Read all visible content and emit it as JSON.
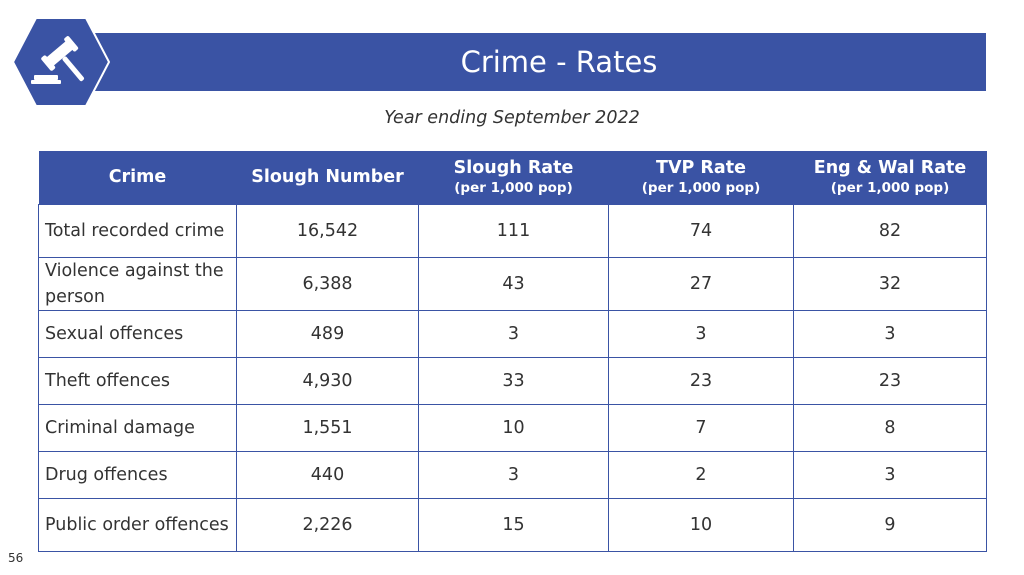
{
  "slide": {
    "title": "Crime - Rates",
    "subtitle": "Year ending September 2022",
    "page_number": "56",
    "icon": "gavel-icon",
    "accent_color": "#3a53a4"
  },
  "table": {
    "headers": [
      {
        "label": "Crime",
        "sub": ""
      },
      {
        "label": "Slough Number",
        "sub": ""
      },
      {
        "label": "Slough Rate",
        "sub": "(per 1,000 pop)"
      },
      {
        "label": "TVP Rate",
        "sub": "(per 1,000 pop)"
      },
      {
        "label": "Eng & Wal Rate",
        "sub": "(per 1,000 pop)"
      }
    ],
    "rows": [
      {
        "crime": "Total recorded crime",
        "slough_number": "16,542",
        "slough_rate": "111",
        "tvp_rate": "74",
        "engwal_rate": "82"
      },
      {
        "crime": "Violence against the person",
        "slough_number": "6,388",
        "slough_rate": "43",
        "tvp_rate": "27",
        "engwal_rate": "32"
      },
      {
        "crime": "Sexual offences",
        "slough_number": "489",
        "slough_rate": "3",
        "tvp_rate": "3",
        "engwal_rate": "3"
      },
      {
        "crime": "Theft offences",
        "slough_number": "4,930",
        "slough_rate": "33",
        "tvp_rate": "23",
        "engwal_rate": "23"
      },
      {
        "crime": "Criminal damage",
        "slough_number": "1,551",
        "slough_rate": "10",
        "tvp_rate": "7",
        "engwal_rate": "8"
      },
      {
        "crime": "Drug offences",
        "slough_number": "440",
        "slough_rate": "3",
        "tvp_rate": "2",
        "engwal_rate": "3"
      },
      {
        "crime": "Public order offences",
        "slough_number": "2,226",
        "slough_rate": "15",
        "tvp_rate": "10",
        "engwal_rate": "9"
      }
    ]
  }
}
